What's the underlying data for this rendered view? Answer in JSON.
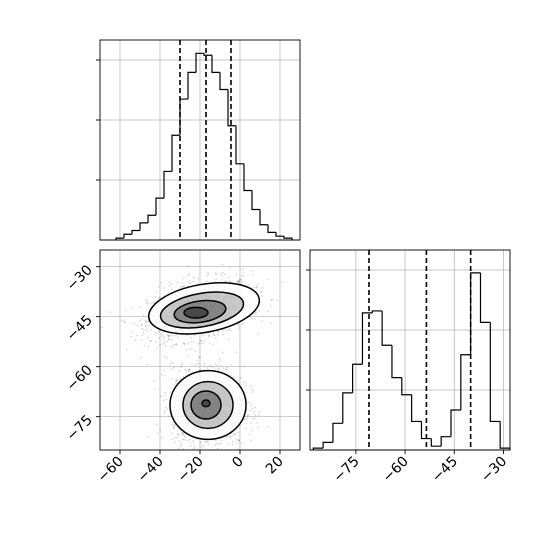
{
  "chart_data": [
    {
      "type": "histogram",
      "panel": "top-left",
      "xlim": [
        -70,
        30
      ],
      "bin_edges": [
        -62,
        -58,
        -54,
        -50,
        -46,
        -42,
        -38,
        -34,
        -30,
        -26,
        -22,
        -18,
        -14,
        -10,
        -6,
        -2,
        2,
        6,
        10,
        14,
        18,
        22,
        26
      ],
      "counts": [
        0.01,
        0.03,
        0.05,
        0.09,
        0.13,
        0.22,
        0.36,
        0.55,
        0.74,
        0.88,
        0.98,
        0.97,
        0.88,
        0.79,
        0.6,
        0.4,
        0.26,
        0.16,
        0.08,
        0.04,
        0.02,
        0.01
      ],
      "quantiles": [
        -30,
        -17,
        -4.5
      ],
      "ymax": 1.05,
      "grid": true
    },
    {
      "type": "scatter-density",
      "panel": "bottom-left",
      "xlim": [
        -70,
        30
      ],
      "ylim": [
        -85,
        -25
      ],
      "xticks": [
        -60,
        -40,
        -20,
        0,
        20
      ],
      "yticks": [
        -30,
        -45,
        -60,
        -75
      ],
      "xtick_labels": [
        "−60",
        "−40",
        "−20",
        "0",
        "20"
      ],
      "ytick_labels": [
        "−30",
        "−45",
        "−60",
        "−75"
      ],
      "clusters": [
        {
          "cx": -20,
          "cy": -43,
          "sx": 13,
          "sy": 4.5,
          "rho": 0.35
        },
        {
          "cx": -16,
          "cy": -72,
          "sx": 9,
          "sy": 6,
          "rho": 0.0
        }
      ],
      "contours": [
        {
          "cx": -18,
          "cy": -42.5,
          "rx": 28,
          "ry": 7.2,
          "angle": -10
        },
        {
          "cx": -19,
          "cy": -43,
          "rx": 21,
          "ry": 5,
          "angle": -10
        },
        {
          "cx": -20,
          "cy": -43.5,
          "rx": 13,
          "ry": 3.2,
          "angle": -8
        },
        {
          "cx": -22,
          "cy": -43.8,
          "rx": 6,
          "ry": 1.6,
          "angle": 0
        },
        {
          "cx": -16,
          "cy": -71.5,
          "rx": 19,
          "ry": 10.3,
          "angle": 0
        },
        {
          "cx": -16,
          "cy": -71.5,
          "rx": 12.5,
          "ry": 7,
          "angle": 0
        },
        {
          "cx": -17,
          "cy": -71.5,
          "rx": 7.5,
          "ry": 4.2,
          "angle": 0
        },
        {
          "cx": -17,
          "cy": -71,
          "rx": 2,
          "ry": 1,
          "angle": 0
        }
      ]
    },
    {
      "type": "histogram",
      "panel": "bottom-right",
      "xlim": [
        -89,
        -28
      ],
      "bin_edges": [
        -88,
        -85,
        -82,
        -79,
        -76,
        -73,
        -70,
        -67,
        -64,
        -61,
        -58,
        -55,
        -52,
        -49,
        -46,
        -43,
        -40,
        -37,
        -34,
        -31,
        -28
      ],
      "counts": [
        0.01,
        0.04,
        0.14,
        0.3,
        0.45,
        0.72,
        0.73,
        0.55,
        0.38,
        0.29,
        0.15,
        0.06,
        0.02,
        0.07,
        0.21,
        0.5,
        0.93,
        0.67,
        0.15,
        0.01
      ],
      "quantiles": [
        -71,
        -53.5,
        -40
      ],
      "xticks": [
        -75,
        -60,
        -45,
        -30
      ],
      "xtick_labels": [
        "−75",
        "−60",
        "−45",
        "−30"
      ],
      "ymax": 1.05,
      "grid": true
    }
  ]
}
